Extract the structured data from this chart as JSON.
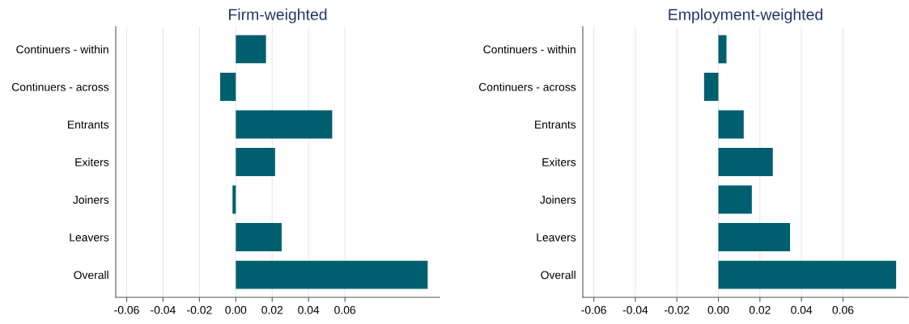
{
  "chart_data": [
    {
      "type": "bar",
      "orientation": "horizontal",
      "title": "Firm-weighted",
      "categories": [
        "Continuers - within",
        "Continuers - across",
        "Entrants",
        "Exiters",
        "Joiners",
        "Leavers",
        "Overall"
      ],
      "values": [
        0.0166,
        -0.0086,
        0.053,
        0.0216,
        -0.0018,
        0.0252,
        0.1055
      ],
      "color": "#005f6e",
      "xlim": [
        -0.066,
        0.112
      ],
      "xticks": [
        {
          "value": -0.06,
          "label": "-0.06"
        },
        {
          "value": -0.04,
          "label": "-0.04"
        },
        {
          "value": -0.02,
          "label": "-0.02"
        },
        {
          "value": 0,
          "label": "0.00"
        },
        {
          "value": 0.02,
          "label": "0.02"
        },
        {
          "value": 0.04,
          "label": "0.04"
        },
        {
          "value": 0.06,
          "label": "0.06"
        }
      ],
      "grid": "x"
    },
    {
      "type": "bar",
      "orientation": "horizontal",
      "title": "Employment-weighted",
      "categories": [
        "Continuers - within",
        "Continuers - across",
        "Entrants",
        "Exiters",
        "Joiners",
        "Leavers",
        "Overall"
      ],
      "values": [
        0.0039,
        -0.0069,
        0.0122,
        0.0262,
        0.0161,
        0.0345,
        0.0856
      ],
      "color": "#005f6e",
      "xlim": [
        -0.0653,
        0.0914
      ],
      "xticks": [
        {
          "value": -0.06,
          "label": "-0.06"
        },
        {
          "value": -0.04,
          "label": "-0.04"
        },
        {
          "value": -0.02,
          "label": "-0.02"
        },
        {
          "value": 0,
          "label": "0.00"
        },
        {
          "value": 0.02,
          "label": "0.02"
        },
        {
          "value": 0.04,
          "label": "0.04"
        },
        {
          "value": 0.06,
          "label": "0.06"
        }
      ],
      "grid": "x"
    }
  ]
}
